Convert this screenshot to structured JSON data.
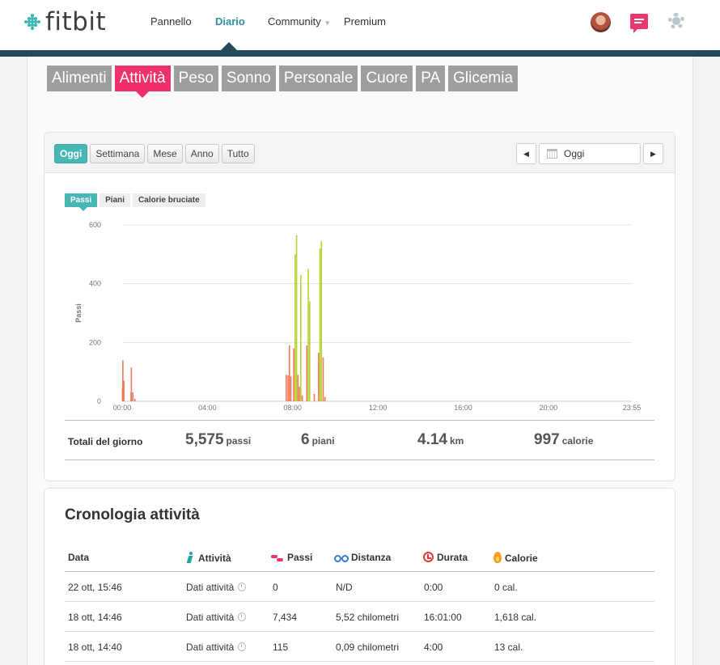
{
  "header": {
    "logo_text": "fitbit",
    "nav": [
      {
        "label": "Pannello",
        "active": false
      },
      {
        "label": "Diario",
        "active": true
      },
      {
        "label": "Community",
        "active": false,
        "has_dropdown": true
      },
      {
        "label": "Premium",
        "active": false
      }
    ],
    "icons": [
      "avatar",
      "messages-icon",
      "gear-icon"
    ],
    "colors": {
      "accent": "#2c8fa6",
      "stripe": "#244a5a",
      "messages": "#e8386f"
    }
  },
  "category_tabs": [
    {
      "label": "Alimenti",
      "active": false
    },
    {
      "label": "Attività",
      "active": true
    },
    {
      "label": "Peso",
      "active": false
    },
    {
      "label": "Sonno",
      "active": false
    },
    {
      "label": "Personale",
      "active": false
    },
    {
      "label": "Cuore",
      "active": false
    },
    {
      "label": "PA",
      "active": false
    },
    {
      "label": "Glicemia",
      "active": false
    }
  ],
  "range_buttons": [
    {
      "label": "Oggi",
      "active": true
    },
    {
      "label": "Settimana",
      "active": false
    },
    {
      "label": "Mese",
      "active": false
    },
    {
      "label": "Anno",
      "active": false
    },
    {
      "label": "Tutto",
      "active": false
    }
  ],
  "date_picker": {
    "value": "Oggi",
    "prev_icon": "◀",
    "next_icon": "▶"
  },
  "metric_tabs": [
    {
      "label": "Passi",
      "active": true
    },
    {
      "label": "Piani",
      "active": false
    },
    {
      "label": "Calorie bruciate",
      "active": false
    }
  ],
  "chart_data": {
    "type": "bar",
    "ylabel": "Passi",
    "ylim": [
      0,
      600
    ],
    "yticks": [
      0,
      200,
      400,
      600
    ],
    "xlim": [
      0,
      1435
    ],
    "xticks": [
      {
        "minute": 0,
        "label": "00:00"
      },
      {
        "minute": 240,
        "label": "04:00"
      },
      {
        "minute": 480,
        "label": "08:00"
      },
      {
        "minute": 720,
        "label": "12:00"
      },
      {
        "minute": 960,
        "label": "16:00"
      },
      {
        "minute": 1200,
        "label": "20:00"
      },
      {
        "minute": 1435,
        "label": "23:55"
      }
    ],
    "grid": true,
    "colors": {
      "low": "#f07a5a",
      "high": "#b5d334",
      "grid": "#e6e6e6"
    },
    "series": [
      {
        "name": "Passi",
        "bars": [
          {
            "minute": 1,
            "value": 45
          },
          {
            "minute": 2,
            "value": 140
          },
          {
            "minute": 5,
            "value": 70
          },
          {
            "minute": 25,
            "value": 30
          },
          {
            "minute": 26,
            "value": 115
          },
          {
            "minute": 30,
            "value": 30
          },
          {
            "minute": 36,
            "value": 8
          },
          {
            "minute": 462,
            "value": 90
          },
          {
            "minute": 467,
            "value": 88
          },
          {
            "minute": 471,
            "value": 190
          },
          {
            "minute": 475,
            "value": 85
          },
          {
            "minute": 483,
            "value": 180
          },
          {
            "minute": 487,
            "value": 500
          },
          {
            "minute": 491,
            "value": 565
          },
          {
            "minute": 495,
            "value": 90
          },
          {
            "minute": 499,
            "value": 50
          },
          {
            "minute": 503,
            "value": 430
          },
          {
            "minute": 507,
            "value": 20
          },
          {
            "minute": 520,
            "value": 190
          },
          {
            "minute": 524,
            "value": 450
          },
          {
            "minute": 528,
            "value": 340
          },
          {
            "minute": 541,
            "value": 25
          },
          {
            "minute": 553,
            "value": 165
          },
          {
            "minute": 557,
            "value": 520
          },
          {
            "minute": 561,
            "value": 545
          },
          {
            "minute": 566,
            "value": 150
          },
          {
            "minute": 571,
            "value": 15
          }
        ]
      }
    ]
  },
  "totals": {
    "label": "Totali del giorno",
    "steps": {
      "value": "5,575",
      "unit": "passi"
    },
    "floors": {
      "value": "6",
      "unit": "piani"
    },
    "distance": {
      "value": "4.14",
      "unit": "km"
    },
    "calories": {
      "value": "997",
      "unit": "calorie"
    }
  },
  "history": {
    "title": "Cronologia attività",
    "columns": {
      "date": "Data",
      "activity": "Attività",
      "steps": "Passi",
      "distance": "Distanza",
      "duration": "Durata",
      "calories": "Calorie"
    },
    "rows": [
      {
        "date": "22 ott, 15:46",
        "activity": "Dati attività",
        "steps": "0",
        "distance": "N/D",
        "duration": "0:00",
        "calories": "0 cal."
      },
      {
        "date": "18 ott, 14:46",
        "activity": "Dati attività",
        "steps": "7,434",
        "distance": "5,52 chilometri",
        "duration": "16:01:00",
        "calories": "1,618 cal."
      },
      {
        "date": "18 ott, 14:40",
        "activity": "Dati attività",
        "steps": "115",
        "distance": "0,09 chilometri",
        "duration": "4:00",
        "calories": "13 cal."
      }
    ]
  }
}
